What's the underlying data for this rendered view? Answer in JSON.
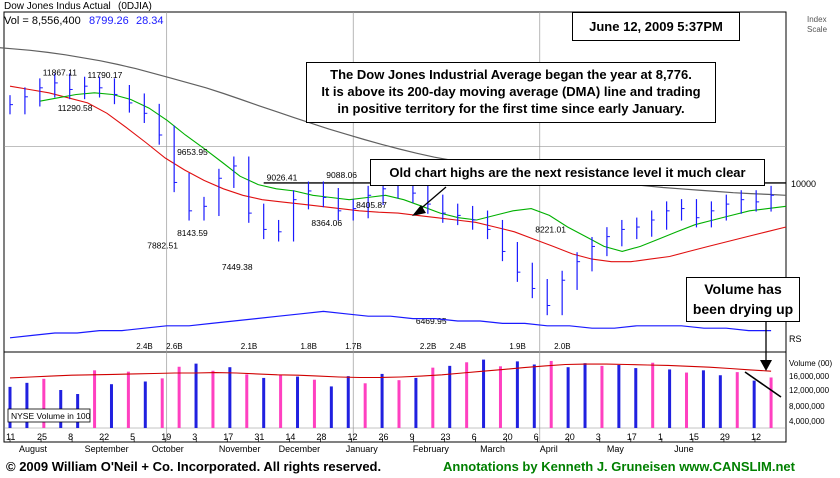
{
  "header": {
    "instrument": "Dow Jones Indus Actual",
    "symbol": "(0DJIA)",
    "vol_label": "Vol = 8,556,400",
    "last_price": "8799.26",
    "change": "28.34",
    "index_scale_label": "Index Scale"
  },
  "date_box": "June 12, 2009 5:37PM",
  "annotations": {
    "main_note": [
      "The Dow Jones Industrial Average began the year at 8,776.",
      "It is above its 200-day moving average (DMA) line and trading",
      "in positive territory for the first time since early January."
    ],
    "resistance_note": "Old chart highs are the next resistance level it much clear",
    "volume_note": [
      "Volume has",
      "been drying up"
    ]
  },
  "footer": {
    "copyright": "© 2009 William O'Neil + Co. Incorporated. All rights reserved.",
    "credit": "Annotations by Kenneth J. Gruneisen www.CANSLIM.net"
  },
  "colors": {
    "price_bar": "#1a1aff",
    "ma50": "#00b000",
    "ma200": "#606060",
    "ma_red": "#e01010",
    "rs_line": "#1a1aff",
    "volume_up": "#2020e0",
    "volume_down": "#ff40c0",
    "volume_avg": "#d00000",
    "credit_text": "#008000"
  },
  "chart_data": {
    "type": "price-volume",
    "price_scale": "log",
    "price_axis_labels": [
      "10000"
    ],
    "volume_axis_labels": [
      "Volume (00)",
      "16,000,000",
      "12,000,000",
      "8,000,000",
      "4,000,000"
    ],
    "volume_legend": "NYSE Volume in 100",
    "rs_label": "RS",
    "resistance_level": 9088.06,
    "price_labels": [
      {
        "text": "11867.11",
        "week": 3,
        "value": 11867.11,
        "pos": "above"
      },
      {
        "text": "11790.17",
        "week": 6,
        "value": 11790.17,
        "pos": "above"
      },
      {
        "text": "11290.58",
        "week": 4,
        "value": 11290.58,
        "pos": "below"
      },
      {
        "text": "9653.95",
        "week": 12,
        "value": 9653.95,
        "pos": "above"
      },
      {
        "text": "7882.51",
        "week": 10,
        "value": 7882.51,
        "pos": "below"
      },
      {
        "text": "8143.59",
        "week": 12,
        "value": 8143.59,
        "pos": "below"
      },
      {
        "text": "7449.38",
        "week": 15,
        "value": 7449.38,
        "pos": "below"
      },
      {
        "text": "9026.41",
        "week": 18,
        "value": 9026.41,
        "pos": "above"
      },
      {
        "text": "9088.06",
        "week": 22,
        "value": 9088.06,
        "pos": "above"
      },
      {
        "text": "8364.06",
        "week": 21,
        "value": 8364.06,
        "pos": "below"
      },
      {
        "text": "8405.87",
        "week": 24,
        "value": 8405.87,
        "pos": "above"
      },
      {
        "text": "6469.95",
        "week": 28,
        "value": 6469.95,
        "pos": "below"
      },
      {
        "text": "8221.01",
        "week": 36,
        "value": 8221.01,
        "pos": "below"
      }
    ],
    "price_weekly_close": [
      11150,
      11380,
      11650,
      11800,
      11600,
      11700,
      11650,
      11450,
      11200,
      10900,
      10300,
      9100,
      8450,
      8550,
      9200,
      9500,
      8400,
      8050,
      8000,
      8700,
      8900,
      8750,
      8450,
      8500,
      8800,
      8950,
      9050,
      8850,
      8600,
      8400,
      8350,
      8250,
      8050,
      7600,
      7200,
      6900,
      6600,
      7050,
      7400,
      7700,
      7900,
      8050,
      8100,
      8250,
      8450,
      8500,
      8300,
      8450,
      8600,
      8700,
      8650,
      8800
    ],
    "ma50_weekly": [
      11250,
      11350,
      11450,
      11500,
      11450,
      11300,
      11050,
      10700,
      10300,
      9950,
      9600,
      9250,
      9050,
      8950,
      8900,
      8800,
      8750,
      8700,
      8750,
      8800,
      8700,
      8550,
      8400,
      8300,
      8250,
      8350,
      8450,
      8500,
      8350,
      8100,
      7900,
      7700,
      7600,
      7700,
      7850,
      8000,
      8150,
      8250,
      8350,
      8450,
      8500,
      8550
    ],
    "ma200_weekly": [
      12950,
      12900,
      12850,
      12780,
      12700,
      12600,
      12500,
      12380,
      12250,
      12100,
      11950,
      11800,
      11650,
      11480,
      11300,
      11120,
      10950,
      10780,
      10620,
      10460,
      10320,
      10180,
      10050,
      9930,
      9820,
      9720,
      9640,
      9560,
      9480,
      9410,
      9350,
      9290,
      9240,
      9190,
      9140,
      9100,
      9060,
      9020,
      8980,
      8950,
      8920,
      8890,
      8860,
      8840,
      8820,
      8800
    ],
    "ma_red_weekly": [
      11700,
      11600,
      11500,
      11350,
      11200,
      10900,
      10500,
      10100,
      9700,
      9400,
      9150,
      8950,
      8800,
      8700,
      8650,
      8600,
      8550,
      8500,
      8450,
      8420,
      8400,
      8350,
      8300,
      8250,
      8200,
      8100,
      8000,
      7850,
      7700,
      7550,
      7450,
      7400,
      7400,
      7450,
      7500,
      7600,
      7700,
      7800,
      7900,
      8000,
      8100
    ],
    "volume_weekly": [
      9.2,
      10.1,
      11.0,
      8.5,
      7.6,
      12.9,
      9.8,
      12.6,
      10.4,
      11.1,
      13.7,
      14.4,
      12.8,
      13.6,
      12.0,
      11.2,
      11.9,
      11.5,
      10.8,
      9.3,
      11.6,
      10.0,
      12.1,
      10.7,
      11.2,
      13.5,
      13.9,
      14.7,
      15.3,
      13.8,
      14.9,
      14.2,
      15.0,
      13.6,
      14.5,
      13.9,
      14.1,
      13.4,
      14.6,
      13.1,
      12.4,
      12.9,
      11.8,
      12.5,
      10.6,
      11.3
    ],
    "volume_up_flags": [
      true,
      true,
      false,
      true,
      true,
      false,
      true,
      false,
      true,
      false,
      false,
      true,
      false,
      true,
      false,
      true,
      false,
      true,
      false,
      true,
      true,
      false,
      true,
      false,
      true,
      false,
      true,
      false,
      true,
      false,
      true,
      true,
      false,
      true,
      true,
      false,
      true,
      true,
      false,
      true,
      false,
      true,
      true,
      false,
      true,
      false
    ],
    "volume_avg_weekly": [
      11.2,
      11.4,
      11.6,
      11.8,
      11.9,
      12.0,
      12.1,
      12.2,
      12.3,
      12.3,
      12.4,
      12.3,
      12.1,
      11.9,
      11.8,
      11.6,
      11.4,
      11.3,
      11.3,
      11.4,
      11.6,
      11.9,
      12.3,
      12.7,
      13.1,
      13.5,
      13.9,
      14.2,
      14.3,
      14.3,
      14.2,
      14.1,
      14.0,
      13.8,
      13.6,
      13.3,
      13.0,
      12.7
    ],
    "rs_weekly": [
      88,
      89,
      90,
      90,
      91,
      91,
      92,
      93,
      93,
      94,
      95,
      96,
      97,
      98,
      99,
      98,
      97,
      97,
      96,
      96,
      95,
      95,
      94,
      94,
      93,
      93,
      92,
      92,
      93,
      93,
      93,
      92,
      92,
      91,
      91
    ],
    "volume_peak_labels": [
      {
        "text": "2.4B",
        "week": 9
      },
      {
        "text": "2.6B",
        "week": 11
      },
      {
        "text": "2.1B",
        "week": 16
      },
      {
        "text": "1.8B",
        "week": 20
      },
      {
        "text": "1.7B",
        "week": 23
      },
      {
        "text": "2.2B",
        "week": 28
      },
      {
        "text": "2.4B",
        "week": 30
      },
      {
        "text": "1.9B",
        "week": 34
      },
      {
        "text": "2.0B",
        "week": 37
      }
    ],
    "x_ticks": [
      "11",
      "25",
      "8",
      "22",
      "5",
      "19",
      "3",
      "17",
      "31",
      "14",
      "28",
      "12",
      "26",
      "9",
      "23",
      "6",
      "20",
      "6",
      "20",
      "3",
      "17",
      "1",
      "15",
      "29",
      "12"
    ],
    "months": [
      "August",
      "September",
      "October",
      "November",
      "December",
      "January",
      "February",
      "March",
      "April",
      "May",
      "June"
    ]
  }
}
